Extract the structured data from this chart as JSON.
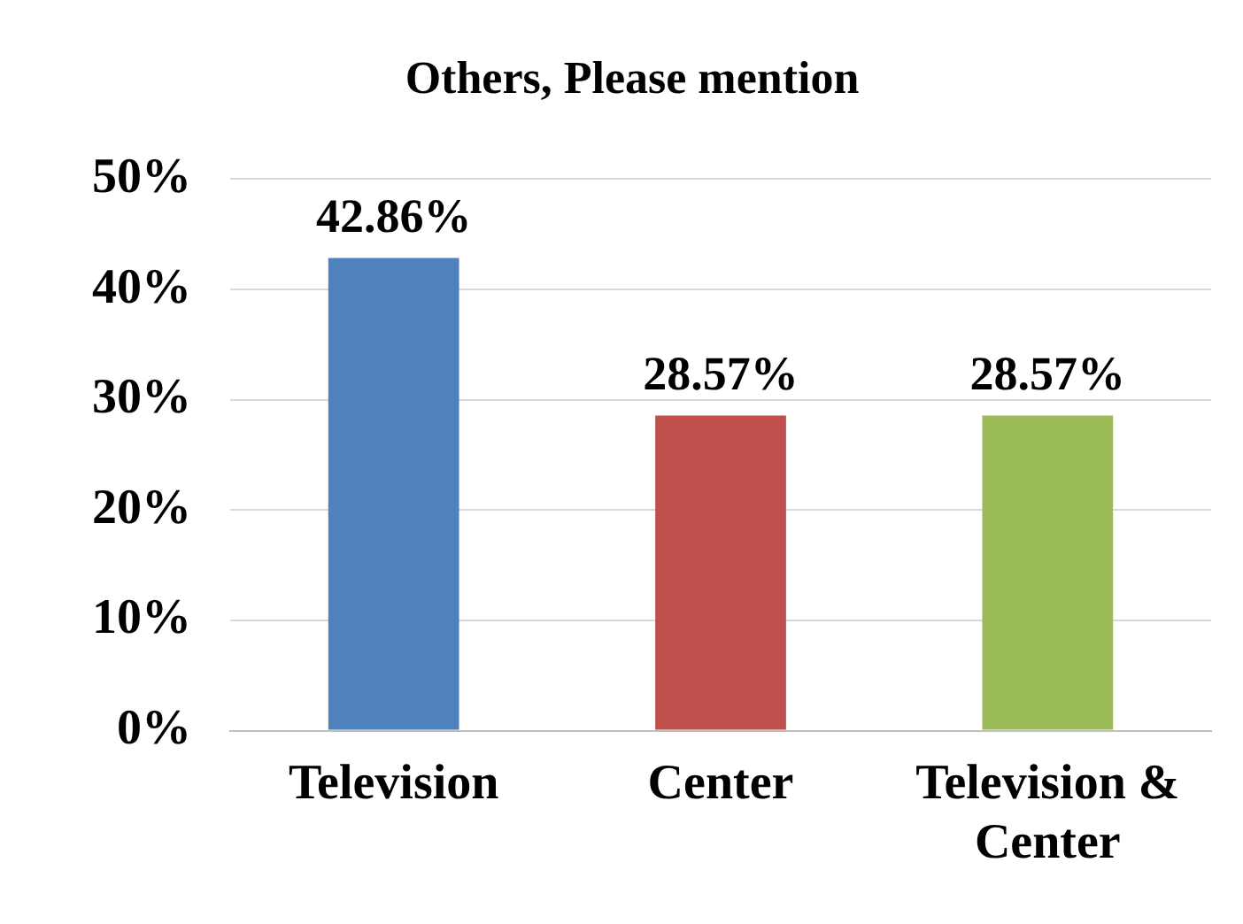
{
  "chart_data": {
    "type": "bar",
    "title": "Others, Please mention",
    "categories": [
      "Television",
      "Center",
      "Television & Center"
    ],
    "values": [
      42.86,
      28.57,
      28.57
    ],
    "colors": [
      "#4f81bd",
      "#c0504d",
      "#9bbb59"
    ],
    "value_labels": [
      "42.86%",
      "28.57%",
      "28.57%"
    ],
    "ylim": [
      0,
      50
    ],
    "yticks": [
      {
        "value": 0,
        "label": "0%"
      },
      {
        "value": 10,
        "label": "10%"
      },
      {
        "value": 20,
        "label": "20%"
      },
      {
        "value": 30,
        "label": "30%"
      },
      {
        "value": 40,
        "label": "40%"
      },
      {
        "value": 50,
        "label": "50%"
      }
    ],
    "grid": "y",
    "legend": false
  }
}
